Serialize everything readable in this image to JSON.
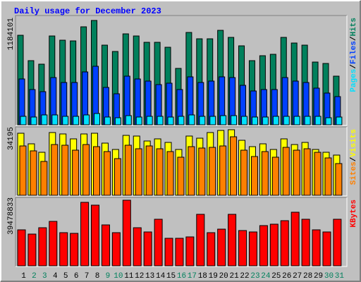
{
  "chart_data": [
    {
      "type": "bar",
      "title": "Daily usage for December 2023",
      "ylim": [
        0,
        1184101
      ],
      "yticks": [
        1184101
      ],
      "series": [
        {
          "name": "Hits",
          "color": "#00805c",
          "values": [
            1016000,
            728000,
            688000,
            1008000,
            960000,
            952000,
            1112000,
            1184101,
            904000,
            832000,
            1032000,
            1008000,
            936000,
            936000,
            880000,
            640000,
            1048000,
            976000,
            976000,
            1072000,
            992000,
            896000,
            728000,
            784000,
            800000,
            992000,
            928000,
            904000,
            712000,
            696000,
            552000
          ]
        },
        {
          "name": "Files",
          "color": "#0040ff",
          "values": [
            520000,
            400000,
            376000,
            536000,
            480000,
            480000,
            600000,
            664000,
            424000,
            352000,
            552000,
            520000,
            496000,
            456000,
            472000,
            400000,
            544000,
            480000,
            496000,
            544000,
            536000,
            448000,
            384000,
            400000,
            400000,
            536000,
            496000,
            480000,
            416000,
            360000,
            320000
          ]
        },
        {
          "name": "Pages",
          "color": "#00e0ff",
          "values": [
            96000,
            88000,
            112000,
            112000,
            96000,
            96000,
            112000,
            128000,
            88000,
            80000,
            104000,
            88000,
            96000,
            96000,
            88000,
            96000,
            112000,
            96000,
            96000,
            104000,
            104000,
            96000,
            88000,
            88000,
            96000,
            96000,
            96000,
            96000,
            96000,
            80000,
            88000
          ]
        }
      ]
    },
    {
      "type": "bar",
      "ylim": [
        0,
        34195
      ],
      "yticks": [
        34195
      ],
      "series": [
        {
          "name": "Visits",
          "color": "#ffff00",
          "values": [
            32360,
            26840,
            22430,
            32730,
            31990,
            29420,
            31990,
            32360,
            27210,
            23900,
            31250,
            30890,
            28310,
            29420,
            27580,
            23900,
            30890,
            29780,
            32730,
            33830,
            34195,
            28680,
            25370,
            26840,
            23900,
            29420,
            26470,
            27580,
            23900,
            22430,
            20960
          ]
        },
        {
          "name": "Sites",
          "color": "#ff8000",
          "values": [
            25740,
            23170,
            17650,
            26470,
            26110,
            23530,
            26470,
            25370,
            22800,
            19120,
            26110,
            24270,
            25740,
            24270,
            22800,
            19860,
            25370,
            24640,
            25000,
            25740,
            30520,
            23530,
            20220,
            22800,
            19860,
            25000,
            23530,
            24270,
            22430,
            19490,
            16550
          ]
        }
      ]
    },
    {
      "type": "bar",
      "ylim": [
        0,
        39478833
      ],
      "yticks": [
        39478833
      ],
      "categories": [
        "1",
        "2",
        "3",
        "4",
        "5",
        "6",
        "7",
        "8",
        "9",
        "10",
        "11",
        "12",
        "13",
        "14",
        "15",
        "16",
        "17",
        "18",
        "19",
        "20",
        "21",
        "22",
        "23",
        "24",
        "25",
        "26",
        "27",
        "28",
        "29",
        "30",
        "31"
      ],
      "category_colors": [
        "#000000",
        "#00805c",
        "#00805c",
        "#000000",
        "#000000",
        "#000000",
        "#000000",
        "#000000",
        "#00805c",
        "#00805c",
        "#000000",
        "#000000",
        "#000000",
        "#000000",
        "#000000",
        "#00805c",
        "#00805c",
        "#000000",
        "#000000",
        "#000000",
        "#000000",
        "#000000",
        "#00805c",
        "#00805c",
        "#000000",
        "#000000",
        "#000000",
        "#000000",
        "#000000",
        "#00805c",
        "#00805c"
      ],
      "series": [
        {
          "name": "KBytes",
          "color": "#ff0000",
          "values": [
            21650000,
            19100000,
            22920000,
            26740000,
            19950000,
            19530000,
            38210000,
            36510000,
            24620000,
            19950000,
            39478833,
            22920000,
            20380000,
            28020000,
            16560000,
            16560000,
            17400000,
            30990000,
            19950000,
            22070000,
            30990000,
            21230000,
            20380000,
            24200000,
            25050000,
            27170000,
            32260000,
            28020000,
            21650000,
            20380000,
            28020000
          ]
        }
      ]
    }
  ]
}
